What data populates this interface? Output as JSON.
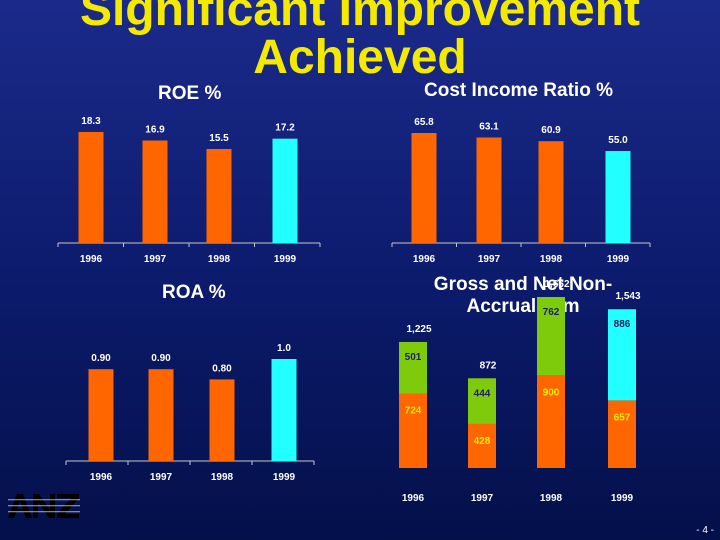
{
  "title_line1": "Significant Improvement",
  "title_line2": "Achieved",
  "page_number": "- 4 -",
  "logo_text": "ANZ",
  "colors": {
    "orange": "#ff6600",
    "cyan": "#22ffff",
    "green": "#7ecb0c",
    "yellow": "#f3ea00"
  },
  "chart_data": [
    {
      "type": "bar",
      "title": "ROE %",
      "categories": [
        "1996",
        "1997",
        "1998",
        "1999"
      ],
      "values": [
        18.3,
        16.9,
        15.5,
        17.2
      ],
      "labels": [
        "18.3",
        "16.9",
        "15.5",
        "17.2"
      ],
      "colors": [
        "orange",
        "orange",
        "orange",
        "cyan"
      ]
    },
    {
      "type": "bar",
      "title": "Cost Income Ratio %",
      "categories": [
        "1996",
        "1997",
        "1998",
        "1999"
      ],
      "values": [
        65.8,
        63.1,
        60.9,
        55.0
      ],
      "labels": [
        "65.8",
        "63.1",
        "60.9",
        "55.0"
      ],
      "colors": [
        "orange",
        "orange",
        "orange",
        "cyan"
      ]
    },
    {
      "type": "bar",
      "title": "ROA %",
      "categories": [
        "1996",
        "1997",
        "1998",
        "1999"
      ],
      "values": [
        0.9,
        0.9,
        0.8,
        1.0
      ],
      "labels": [
        "0.90",
        "0.90",
        "0.80",
        "1.0"
      ],
      "colors": [
        "orange",
        "orange",
        "orange",
        "cyan"
      ]
    },
    {
      "type": "bar",
      "stacked": true,
      "title": "Gross and Net Non-Accruals $m",
      "categories": [
        "1996",
        "1997",
        "1998",
        "1999"
      ],
      "series": [
        {
          "values": [
            724,
            428,
            900,
            657
          ],
          "labels": [
            "724",
            "428",
            "900",
            "657"
          ]
        },
        {
          "values": [
            501,
            444,
            762,
            886
          ],
          "labels": [
            "501",
            "444",
            "762",
            "886"
          ]
        }
      ],
      "totals": [
        1225,
        872,
        1662,
        1543
      ],
      "total_labels": [
        "1,225",
        "872",
        "1,662",
        "1,543"
      ]
    }
  ]
}
